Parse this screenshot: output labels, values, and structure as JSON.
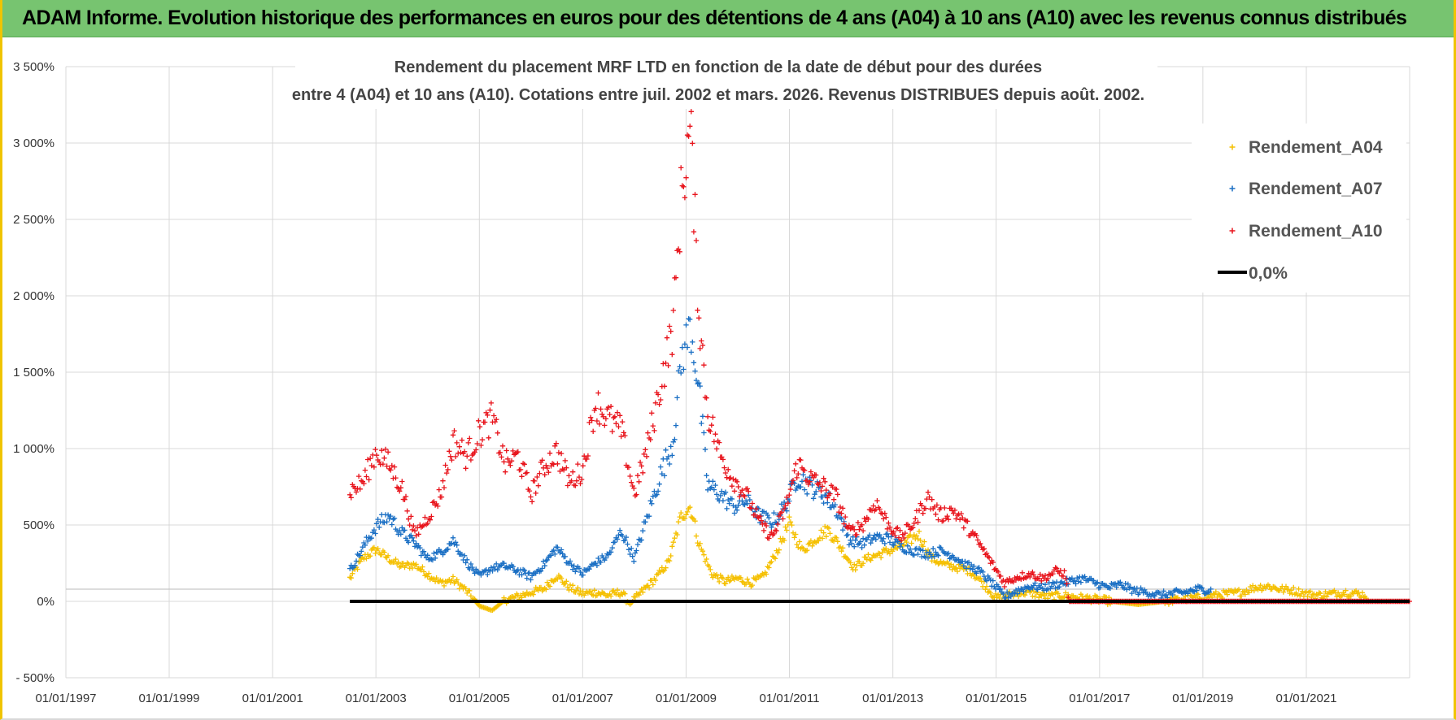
{
  "banner": {
    "title": "ADAM Informe. Evolution historique des performances en euros pour des détentions de 4 ans (A04) à 10 ans (A10) avec les revenus connus distribués"
  },
  "colors": {
    "banner_bg": "#77c470",
    "A04": "#f5c000",
    "A07": "#1a6fc4",
    "A10": "#e8141c",
    "zero_line": "#000000",
    "grid": "#d9d9d9"
  },
  "chart_data": {
    "type": "scatter",
    "title_lines": [
      "Rendement du placement MRF LTD en fonction de la date de début pour des durées",
      "entre 4 (A04) et 10 ans (A10).  Cotations entre juil. 2002 et mars. 2026. Revenus DISTRIBUES depuis août. 2002."
    ],
    "xlabel": "",
    "ylabel": "",
    "x_range": [
      "1997-01-01",
      "2023-01-01"
    ],
    "x_ticks": [
      "1997-01-01",
      "1999-01-01",
      "2001-01-01",
      "2003-01-01",
      "2005-01-01",
      "2007-01-01",
      "2009-01-01",
      "2011-01-01",
      "2013-01-01",
      "2015-01-01",
      "2017-01-01",
      "2019-01-01",
      "2021-01-01"
    ],
    "x_tick_labels": [
      "01/01/1997",
      "01/01/1999",
      "01/01/2001",
      "01/01/2003",
      "01/01/2005",
      "01/01/2007",
      "01/01/2009",
      "01/01/2011",
      "01/01/2013",
      "01/01/2015",
      "01/01/2017",
      "01/01/2019",
      "01/01/2021"
    ],
    "y_range": [
      -500,
      3500
    ],
    "y_ticks": [
      -500,
      0,
      500,
      1000,
      1500,
      2000,
      2500,
      3000,
      3500
    ],
    "y_tick_labels": [
      "- 500%",
      "0%",
      "500%",
      "1 000%",
      "1 500%",
      "2 000%",
      "2 500%",
      "3 000%",
      "3 500%"
    ],
    "grid": true,
    "legend_position": "top-right",
    "series": [
      {
        "name": "Rendement_A04",
        "color": "#f5c000",
        "marker": "+",
        "x_start": "2002-07-01",
        "x_end": "2022-03-01",
        "points": [
          [
            "2002-07-01",
            150
          ],
          [
            "2002-10-01",
            280
          ],
          [
            "2003-01-01",
            340
          ],
          [
            "2003-04-01",
            280
          ],
          [
            "2003-07-01",
            230
          ],
          [
            "2003-10-01",
            240
          ],
          [
            "2004-01-01",
            180
          ],
          [
            "2004-04-01",
            120
          ],
          [
            "2004-07-01",
            140
          ],
          [
            "2004-10-01",
            70
          ],
          [
            "2005-01-01",
            -30
          ],
          [
            "2005-04-01",
            -60
          ],
          [
            "2005-07-01",
            10
          ],
          [
            "2005-10-01",
            30
          ],
          [
            "2006-01-01",
            60
          ],
          [
            "2006-04-01",
            80
          ],
          [
            "2006-07-01",
            170
          ],
          [
            "2006-10-01",
            90
          ],
          [
            "2007-01-01",
            50
          ],
          [
            "2007-04-01",
            60
          ],
          [
            "2007-07-01",
            40
          ],
          [
            "2007-10-01",
            60
          ],
          [
            "2007-12-01",
            -20
          ],
          [
            "2008-03-01",
            70
          ],
          [
            "2008-06-01",
            150
          ],
          [
            "2008-09-01",
            260
          ],
          [
            "2008-12-01",
            570
          ],
          [
            "2009-02-01",
            620
          ],
          [
            "2009-04-01",
            380
          ],
          [
            "2009-07-01",
            180
          ],
          [
            "2009-10-01",
            130
          ],
          [
            "2010-01-01",
            150
          ],
          [
            "2010-04-01",
            120
          ],
          [
            "2010-07-01",
            160
          ],
          [
            "2010-10-01",
            320
          ],
          [
            "2011-01-01",
            510
          ],
          [
            "2011-04-01",
            330
          ],
          [
            "2011-07-01",
            410
          ],
          [
            "2011-10-01",
            470
          ],
          [
            "2012-01-01",
            350
          ],
          [
            "2012-04-01",
            220
          ],
          [
            "2012-07-01",
            280
          ],
          [
            "2012-10-01",
            310
          ],
          [
            "2013-01-01",
            340
          ],
          [
            "2013-04-01",
            380
          ],
          [
            "2013-07-01",
            440
          ],
          [
            "2013-10-01",
            280
          ],
          [
            "2014-01-01",
            240
          ],
          [
            "2014-04-01",
            220
          ],
          [
            "2014-07-01",
            200
          ],
          [
            "2014-10-01",
            120
          ],
          [
            "2015-01-01",
            20
          ],
          [
            "2015-04-01",
            40
          ],
          [
            "2015-07-01",
            60
          ],
          [
            "2015-10-01",
            50
          ],
          [
            "2016-01-01",
            30
          ],
          [
            "2016-04-01",
            40
          ],
          [
            "2016-07-01",
            30
          ],
          [
            "2016-10-01",
            20
          ],
          [
            "2017-01-01",
            10
          ],
          [
            "2017-04-01",
            0
          ],
          [
            "2017-07-01",
            -10
          ],
          [
            "2017-10-01",
            -20
          ],
          [
            "2018-01-01",
            -10
          ],
          [
            "2018-04-01",
            0
          ],
          [
            "2018-07-01",
            10
          ],
          [
            "2018-10-01",
            20
          ],
          [
            "2019-01-01",
            30
          ],
          [
            "2019-04-01",
            40
          ],
          [
            "2019-07-01",
            50
          ],
          [
            "2019-10-01",
            60
          ],
          [
            "2020-01-01",
            90
          ],
          [
            "2020-04-01",
            100
          ],
          [
            "2020-07-01",
            80
          ],
          [
            "2020-10-01",
            70
          ],
          [
            "2021-01-01",
            50
          ],
          [
            "2021-04-01",
            40
          ],
          [
            "2021-07-01",
            50
          ],
          [
            "2021-10-01",
            60
          ],
          [
            "2022-01-01",
            50
          ],
          [
            "2022-03-01",
            40
          ]
        ]
      },
      {
        "name": "Rendement_A07",
        "color": "#1a6fc4",
        "marker": "+",
        "x_start": "2002-07-01",
        "x_end": "2019-03-01",
        "points": [
          [
            "2002-07-01",
            200
          ],
          [
            "2002-10-01",
            350
          ],
          [
            "2003-01-01",
            490
          ],
          [
            "2003-04-01",
            560
          ],
          [
            "2003-07-01",
            450
          ],
          [
            "2003-10-01",
            380
          ],
          [
            "2004-01-01",
            280
          ],
          [
            "2004-04-01",
            320
          ],
          [
            "2004-07-01",
            400
          ],
          [
            "2004-10-01",
            260
          ],
          [
            "2005-01-01",
            160
          ],
          [
            "2005-04-01",
            220
          ],
          [
            "2005-07-01",
            230
          ],
          [
            "2005-10-01",
            200
          ],
          [
            "2006-01-01",
            160
          ],
          [
            "2006-04-01",
            240
          ],
          [
            "2006-07-01",
            350
          ],
          [
            "2006-10-01",
            250
          ],
          [
            "2007-01-01",
            180
          ],
          [
            "2007-04-01",
            250
          ],
          [
            "2007-07-01",
            300
          ],
          [
            "2007-10-01",
            460
          ],
          [
            "2008-01-01",
            280
          ],
          [
            "2008-04-01",
            550
          ],
          [
            "2008-07-01",
            820
          ],
          [
            "2008-10-01",
            1050
          ],
          [
            "2008-12-01",
            1600
          ],
          [
            "2009-02-01",
            1800
          ],
          [
            "2009-04-01",
            1400
          ],
          [
            "2009-06-01",
            760
          ],
          [
            "2009-09-01",
            700
          ],
          [
            "2009-12-01",
            620
          ],
          [
            "2010-03-01",
            660
          ],
          [
            "2010-06-01",
            560
          ],
          [
            "2010-09-01",
            520
          ],
          [
            "2010-12-01",
            620
          ],
          [
            "2011-03-01",
            820
          ],
          [
            "2011-06-01",
            750
          ],
          [
            "2011-09-01",
            700
          ],
          [
            "2011-12-01",
            600
          ],
          [
            "2012-03-01",
            400
          ],
          [
            "2012-06-01",
            380
          ],
          [
            "2012-09-01",
            420
          ],
          [
            "2012-12-01",
            410
          ],
          [
            "2013-03-01",
            360
          ],
          [
            "2013-06-01",
            330
          ],
          [
            "2013-09-01",
            310
          ],
          [
            "2013-12-01",
            330
          ],
          [
            "2014-03-01",
            300
          ],
          [
            "2014-06-01",
            240
          ],
          [
            "2014-09-01",
            200
          ],
          [
            "2014-12-01",
            120
          ],
          [
            "2015-03-01",
            30
          ],
          [
            "2015-06-01",
            70
          ],
          [
            "2015-09-01",
            100
          ],
          [
            "2015-12-01",
            90
          ],
          [
            "2016-03-01",
            110
          ],
          [
            "2016-06-01",
            130
          ],
          [
            "2016-09-01",
            150
          ],
          [
            "2016-12-01",
            120
          ],
          [
            "2017-03-01",
            90
          ],
          [
            "2017-06-01",
            110
          ],
          [
            "2017-09-01",
            70
          ],
          [
            "2017-12-01",
            60
          ],
          [
            "2018-03-01",
            40
          ],
          [
            "2018-06-01",
            50
          ],
          [
            "2018-09-01",
            60
          ],
          [
            "2018-12-01",
            80
          ],
          [
            "2019-03-01",
            70
          ]
        ]
      },
      {
        "name": "Rendement_A10",
        "color": "#e8141c",
        "marker": "+",
        "x_start": "2002-07-01",
        "x_end": "2023-01-01",
        "points": [
          [
            "2002-07-01",
            720
          ],
          [
            "2002-10-01",
            780
          ],
          [
            "2003-01-01",
            980
          ],
          [
            "2003-04-01",
            900
          ],
          [
            "2003-07-01",
            750
          ],
          [
            "2003-10-01",
            430
          ],
          [
            "2004-01-01",
            550
          ],
          [
            "2004-04-01",
            700
          ],
          [
            "2004-07-01",
            1050
          ],
          [
            "2004-10-01",
            950
          ],
          [
            "2005-01-01",
            1100
          ],
          [
            "2005-04-01",
            1200
          ],
          [
            "2005-07-01",
            900
          ],
          [
            "2005-10-01",
            950
          ],
          [
            "2006-01-01",
            700
          ],
          [
            "2006-04-01",
            880
          ],
          [
            "2006-07-01",
            980
          ],
          [
            "2006-10-01",
            780
          ],
          [
            "2007-01-01",
            860
          ],
          [
            "2007-04-01",
            1300
          ],
          [
            "2007-07-01",
            1200
          ],
          [
            "2007-10-01",
            1120
          ],
          [
            "2008-01-01",
            700
          ],
          [
            "2008-04-01",
            1000
          ],
          [
            "2008-07-01",
            1400
          ],
          [
            "2008-10-01",
            1800
          ],
          [
            "2008-12-01",
            2700
          ],
          [
            "2009-02-01",
            3100
          ],
          [
            "2009-04-01",
            1900
          ],
          [
            "2009-06-01",
            1250
          ],
          [
            "2009-09-01",
            950
          ],
          [
            "2009-12-01",
            800
          ],
          [
            "2010-03-01",
            700
          ],
          [
            "2010-06-01",
            520
          ],
          [
            "2010-09-01",
            420
          ],
          [
            "2010-12-01",
            600
          ],
          [
            "2011-03-01",
            900
          ],
          [
            "2011-06-01",
            800
          ],
          [
            "2011-09-01",
            750
          ],
          [
            "2011-12-01",
            680
          ],
          [
            "2012-03-01",
            450
          ],
          [
            "2012-06-01",
            500
          ],
          [
            "2012-09-01",
            650
          ],
          [
            "2012-12-01",
            500
          ],
          [
            "2013-03-01",
            420
          ],
          [
            "2013-06-01",
            520
          ],
          [
            "2013-09-01",
            680
          ],
          [
            "2013-12-01",
            560
          ],
          [
            "2014-03-01",
            600
          ],
          [
            "2014-06-01",
            500
          ],
          [
            "2014-09-01",
            380
          ],
          [
            "2014-12-01",
            250
          ],
          [
            "2015-03-01",
            120
          ],
          [
            "2015-06-01",
            160
          ],
          [
            "2015-09-01",
            180
          ],
          [
            "2015-12-01",
            150
          ],
          [
            "2016-03-01",
            200
          ],
          [
            "2016-05-01",
            180
          ],
          [
            "2016-06-01",
            0
          ],
          [
            "2017-01-01",
            0
          ],
          [
            "2018-01-01",
            0
          ],
          [
            "2019-01-01",
            0
          ],
          [
            "2020-01-01",
            0
          ],
          [
            "2021-01-01",
            0
          ],
          [
            "2022-01-01",
            0
          ],
          [
            "2023-01-01",
            0
          ]
        ]
      }
    ],
    "zero_line": {
      "name": "0,0%",
      "value": 0,
      "x_start": "2002-07-01",
      "x_end": "2023-01-01"
    },
    "legend": [
      "Rendement_A04",
      "Rendement_A07",
      "Rendement_A10",
      "0,0%"
    ]
  }
}
